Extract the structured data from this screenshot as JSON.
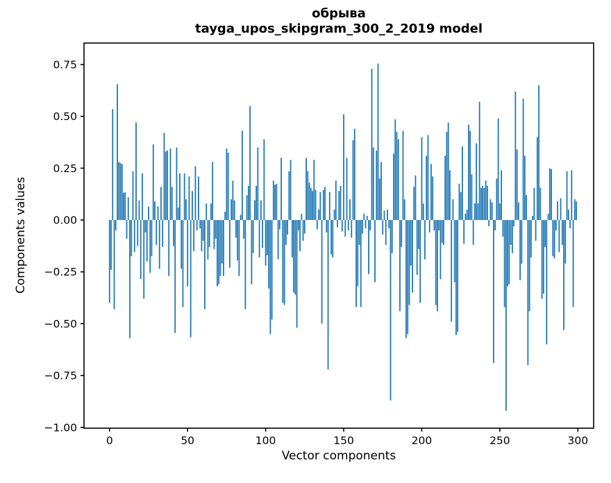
{
  "figure": {
    "title_line1": "обрыва",
    "title_line2": "tayga_upos_skipgram_300_2_2019 model",
    "xlabel": "Vector components",
    "ylabel": "Components values",
    "background": "#ffffff",
    "spine_color": "#000000"
  },
  "chart_data": {
    "type": "bar",
    "title": "обрыва\ntayga_upos_skipgram_300_2_2019 model",
    "xlabel": "Vector components",
    "ylabel": "Components values",
    "bar_color": "#1f77b4",
    "grid": false,
    "legend": false,
    "x_ticks": [
      0,
      50,
      100,
      150,
      200,
      250,
      300
    ],
    "y_ticks": [
      0.75,
      0.5,
      0.25,
      0.0,
      -0.25,
      -0.5,
      -0.75,
      -1.0
    ],
    "y_tick_labels": [
      "0.75",
      "0.50",
      "0.25",
      "0.00",
      "−0.25",
      "−0.50",
      "−0.75",
      "−1.00"
    ],
    "xlim": [
      -16.35,
      310.1
    ],
    "ylim": [
      -1.004,
      0.8537
    ],
    "n_components": 300,
    "values": [
      -0.4,
      -0.24,
      0.535,
      -0.43,
      -0.05,
      0.655,
      0.28,
      0.275,
      0.27,
      0.13,
      0.135,
      -0.09,
      0.11,
      -0.57,
      -0.175,
      0.235,
      -0.155,
      0.47,
      -0.125,
      0.095,
      -0.285,
      0.225,
      -0.38,
      -0.06,
      -0.2,
      0.065,
      -0.255,
      -0.175,
      0.365,
      0.09,
      -0.12,
      0.065,
      -0.235,
      0.16,
      -0.13,
      0.42,
      0.33,
      0.335,
      -0.27,
      0.345,
      0.16,
      -0.125,
      -0.545,
      0.35,
      0.06,
      0.225,
      -0.235,
      -0.42,
      0.225,
      0.1,
      -0.32,
      0.21,
      -0.565,
      0.14,
      -0.15,
      0.26,
      -0.05,
      0.21,
      -0.04,
      -0.15,
      -0.1,
      -0.43,
      0.08,
      -0.19,
      -0.13,
      0.08,
      0.28,
      -0.14,
      -0.09,
      -0.32,
      -0.31,
      -0.27,
      -0.21,
      -0.27,
      0.04,
      0.345,
      0.325,
      -0.23,
      0.1,
      0.19,
      0.095,
      -0.085,
      -0.195,
      -0.27,
      0.025,
      0.43,
      -0.09,
      -0.43,
      0.12,
      0.165,
      0.55,
      -0.31,
      -0.16,
      0.095,
      0.165,
      0.35,
      -0.18,
      0.095,
      -0.135,
      0.39,
      -0.22,
      -0.17,
      -0.33,
      -0.55,
      -0.48,
      0.19,
      0.17,
      0.175,
      -0.19,
      -0.045,
      0.3,
      -0.4,
      -0.41,
      -0.12,
      -0.07,
      0.235,
      0.29,
      -0.18,
      -0.35,
      -0.36,
      -0.52,
      -0.05,
      -0.15,
      0.03,
      -0.1,
      -0.065,
      0.3,
      0.235,
      0.18,
      0.155,
      0.14,
      0.29,
      0.145,
      -0.045,
      0.05,
      0.135,
      -0.5,
      0.145,
      0.16,
      -0.06,
      -0.72,
      0.135,
      -0.165,
      -0.18,
      0.05,
      0.19,
      -0.035,
      0.14,
      0.165,
      -0.055,
      0.51,
      -0.08,
      0.3,
      -0.05,
      0.1,
      -0.085,
      0.385,
      0.44,
      -0.42,
      -0.32,
      -0.12,
      -0.42,
      -0.065,
      0.03,
      -0.04,
      0.02,
      -0.26,
      -0.05,
      0.73,
      0.35,
      -0.3,
      0.335,
      0.755,
      0.2,
      0.28,
      -0.07,
      0.045,
      -0.12,
      0.05,
      -0.04,
      -0.87,
      -0.16,
      0.32,
      0.485,
      0.425,
      0.39,
      -0.44,
      -0.13,
      0.43,
      0.1,
      -0.57,
      -0.55,
      -0.41,
      -0.22,
      -0.35,
      0.16,
      0.215,
      -0.265,
      -0.14,
      -0.4,
      0.4,
      0.08,
      -0.19,
      0.31,
      0.41,
      -0.06,
      0.27,
      0.21,
      -0.05,
      -0.41,
      -0.44,
      -0.05,
      -0.285,
      -0.11,
      -0.12,
      0.31,
      0.425,
      0.47,
      0.24,
      -0.49,
      0.1,
      -0.3,
      -0.555,
      -0.54,
      0.175,
      0.135,
      0.355,
      -0.115,
      0.03,
      0.05,
      0.46,
      0.43,
      0.22,
      -0.12,
      0.08,
      0.37,
      0.08,
      0.57,
      0.155,
      0.165,
      0.155,
      0.19,
      0.165,
      -0.03,
      0.1,
      0.085,
      -0.69,
      -0.05,
      0.2,
      0.49,
      0.08,
      0.24,
      -0.08,
      -0.42,
      -0.92,
      -0.32,
      -0.31,
      -0.12,
      -0.16,
      -0.03,
      0.62,
      0.34,
      0.085,
      -0.29,
      -0.21,
      0.585,
      0.31,
      0.12,
      -0.7,
      -0.44,
      -0.18,
      0.02,
      0.155,
      -0.1,
      0.4,
      0.65,
      0.155,
      -0.38,
      -0.355,
      -0.13,
      -0.6,
      0.03,
      0.25,
      0.245,
      -0.175,
      -0.185,
      -0.05,
      0.09,
      -0.155,
      0.105,
      -0.12,
      -0.53,
      -0.21,
      0.235,
      0.05,
      -0.04,
      0.24,
      -0.42,
      0.1,
      0.09
    ]
  }
}
